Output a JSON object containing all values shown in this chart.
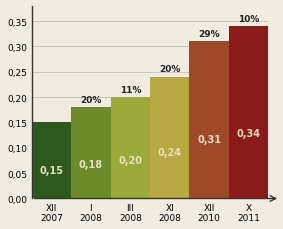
{
  "categories": [
    "XII\n2007",
    "I\n2008",
    "III\n2008",
    "XI\n2008",
    "XII\n2010",
    "X\n2011"
  ],
  "values": [
    0.15,
    0.18,
    0.2,
    0.24,
    0.31,
    0.34
  ],
  "bar_colors": [
    "#2d5a1b",
    "#6b8c28",
    "#9aab38",
    "#b8a840",
    "#9e4a28",
    "#8b1a1a"
  ],
  "pct_labels": [
    "",
    "20%",
    "11%",
    "20%",
    "29%",
    "10%"
  ],
  "val_labels": [
    "0,15",
    "0,18",
    "0,20",
    "0,24",
    "0,31",
    "0,34"
  ],
  "yticks": [
    0.0,
    0.05,
    0.1,
    0.15,
    0.2,
    0.25,
    0.3,
    0.35
  ],
  "ytick_labels": [
    "0,00",
    "0,05",
    "0,10",
    "0,15",
    "0,20",
    "0,25",
    "0,30",
    "0,35"
  ],
  "ylim": [
    0,
    0.38
  ],
  "background_color": "#f0ece0",
  "val_label_color": "#e8dfc0",
  "pct_label_color": "#222222",
  "grid_color": "#c8c4b8"
}
